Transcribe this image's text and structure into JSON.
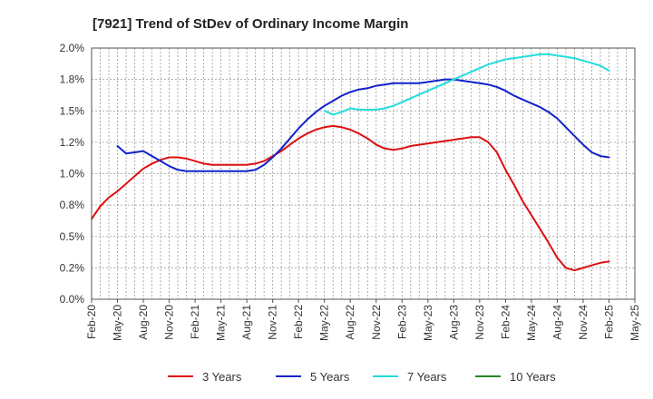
{
  "chart_data": {
    "type": "line",
    "title": "[7921]  Trend of StDev of Ordinary Income Margin",
    "xlabel": "",
    "ylabel": "",
    "ylim": [
      0,
      2.0
    ],
    "yticks": [
      0,
      0.25,
      0.5,
      0.75,
      1.0,
      1.25,
      1.5,
      1.75,
      2.0
    ],
    "ytick_labels": [
      "0.0%",
      "0.2%",
      "0.5%",
      "0.8%",
      "1.0%",
      "1.2%",
      "1.5%",
      "1.8%",
      "2.0%"
    ],
    "x_ticks": [
      "Feb-20",
      "May-20",
      "Aug-20",
      "Nov-20",
      "Feb-21",
      "May-21",
      "Aug-21",
      "Nov-21",
      "Feb-22",
      "May-22",
      "Aug-22",
      "Nov-22",
      "Feb-23",
      "May-23",
      "Aug-23",
      "Nov-23",
      "Feb-24",
      "May-24",
      "Aug-24",
      "Nov-24",
      "Feb-25",
      "May-25"
    ],
    "grid": true,
    "legend_position": "bottom",
    "series": [
      {
        "name": "3 Years",
        "color": "#dd1111",
        "x": [
          "Feb-20",
          "Mar-20",
          "Apr-20",
          "May-20",
          "Jun-20",
          "Jul-20",
          "Aug-20",
          "Sep-20",
          "Oct-20",
          "Nov-20",
          "Dec-20",
          "Jan-21",
          "Feb-21",
          "Mar-21",
          "Apr-21",
          "May-21",
          "Jun-21",
          "Jul-21",
          "Aug-21",
          "Sep-21",
          "Oct-21",
          "Nov-21",
          "Dec-21",
          "Jan-22",
          "Feb-22",
          "Mar-22",
          "Apr-22",
          "May-22",
          "Jun-22",
          "Jul-22",
          "Aug-22",
          "Sep-22",
          "Oct-22",
          "Nov-22",
          "Dec-22",
          "Jan-23",
          "Feb-23",
          "Mar-23",
          "Apr-23",
          "May-23",
          "Jun-23",
          "Jul-23",
          "Aug-23",
          "Sep-23",
          "Oct-23",
          "Nov-23",
          "Dec-23",
          "Jan-24",
          "Feb-24",
          "Mar-24",
          "Apr-24",
          "May-24",
          "Jun-24",
          "Jul-24",
          "Aug-24",
          "Sep-24",
          "Oct-24",
          "Nov-24",
          "Dec-24",
          "Jan-25",
          "Feb-25"
        ],
        "values": [
          0.64,
          0.74,
          0.81,
          0.86,
          0.92,
          0.98,
          1.04,
          1.08,
          1.11,
          1.13,
          1.13,
          1.12,
          1.1,
          1.08,
          1.07,
          1.07,
          1.07,
          1.07,
          1.07,
          1.08,
          1.1,
          1.14,
          1.18,
          1.23,
          1.28,
          1.32,
          1.35,
          1.37,
          1.38,
          1.37,
          1.35,
          1.32,
          1.28,
          1.23,
          1.2,
          1.19,
          1.2,
          1.22,
          1.23,
          1.24,
          1.25,
          1.26,
          1.27,
          1.28,
          1.29,
          1.29,
          1.25,
          1.17,
          1.03,
          0.91,
          0.78,
          0.67,
          0.56,
          0.45,
          0.33,
          0.25,
          0.23,
          0.25,
          0.27,
          0.29,
          0.3
        ]
      },
      {
        "name": "5 Years",
        "color": "#1122cc",
        "x": [
          "May-20",
          "Jun-20",
          "Jul-20",
          "Aug-20",
          "Sep-20",
          "Oct-20",
          "Nov-20",
          "Dec-20",
          "Jan-21",
          "Feb-21",
          "Mar-21",
          "Apr-21",
          "May-21",
          "Jun-21",
          "Jul-21",
          "Aug-21",
          "Sep-21",
          "Oct-21",
          "Nov-21",
          "Dec-21",
          "Jan-22",
          "Feb-22",
          "Mar-22",
          "Apr-22",
          "May-22",
          "Jun-22",
          "Jul-22",
          "Aug-22",
          "Sep-22",
          "Oct-22",
          "Nov-22",
          "Dec-22",
          "Jan-23",
          "Feb-23",
          "Mar-23",
          "Apr-23",
          "May-23",
          "Jun-23",
          "Jul-23",
          "Aug-23",
          "Sep-23",
          "Oct-23",
          "Nov-23",
          "Dec-23",
          "Jan-24",
          "Feb-24",
          "Mar-24",
          "Apr-24",
          "May-24",
          "Jun-24",
          "Jul-24",
          "Aug-24",
          "Sep-24",
          "Oct-24",
          "Nov-24",
          "Dec-24",
          "Jan-25",
          "Feb-25"
        ],
        "values": [
          1.22,
          1.16,
          1.17,
          1.18,
          1.14,
          1.1,
          1.06,
          1.03,
          1.02,
          1.02,
          1.02,
          1.02,
          1.02,
          1.02,
          1.02,
          1.02,
          1.03,
          1.07,
          1.13,
          1.2,
          1.28,
          1.36,
          1.43,
          1.49,
          1.54,
          1.58,
          1.62,
          1.65,
          1.67,
          1.68,
          1.7,
          1.71,
          1.72,
          1.72,
          1.72,
          1.72,
          1.73,
          1.74,
          1.75,
          1.75,
          1.74,
          1.73,
          1.72,
          1.71,
          1.69,
          1.66,
          1.62,
          1.59,
          1.56,
          1.53,
          1.49,
          1.44,
          1.37,
          1.3,
          1.23,
          1.17,
          1.14,
          1.13
        ]
      },
      {
        "name": "7 Years",
        "color": "#22dddd",
        "x": [
          "May-22",
          "Jun-22",
          "Jul-22",
          "Aug-22",
          "Sep-22",
          "Oct-22",
          "Nov-22",
          "Dec-22",
          "Jan-23",
          "Feb-23",
          "Mar-23",
          "Apr-23",
          "May-23",
          "Jun-23",
          "Jul-23",
          "Aug-23",
          "Sep-23",
          "Oct-23",
          "Nov-23",
          "Dec-23",
          "Jan-24",
          "Feb-24",
          "Mar-24",
          "Apr-24",
          "May-24",
          "Jun-24",
          "Jul-24",
          "Aug-24",
          "Sep-24",
          "Oct-24",
          "Nov-24",
          "Dec-24",
          "Jan-25",
          "Feb-25"
        ],
        "values": [
          1.5,
          1.47,
          1.49,
          1.52,
          1.51,
          1.51,
          1.51,
          1.52,
          1.54,
          1.57,
          1.6,
          1.63,
          1.66,
          1.69,
          1.72,
          1.75,
          1.78,
          1.81,
          1.84,
          1.87,
          1.89,
          1.91,
          1.92,
          1.93,
          1.94,
          1.95,
          1.95,
          1.94,
          1.93,
          1.92,
          1.9,
          1.88,
          1.86,
          1.82
        ]
      },
      {
        "name": "10 Years",
        "color": "#228822",
        "x": [],
        "values": []
      }
    ]
  }
}
